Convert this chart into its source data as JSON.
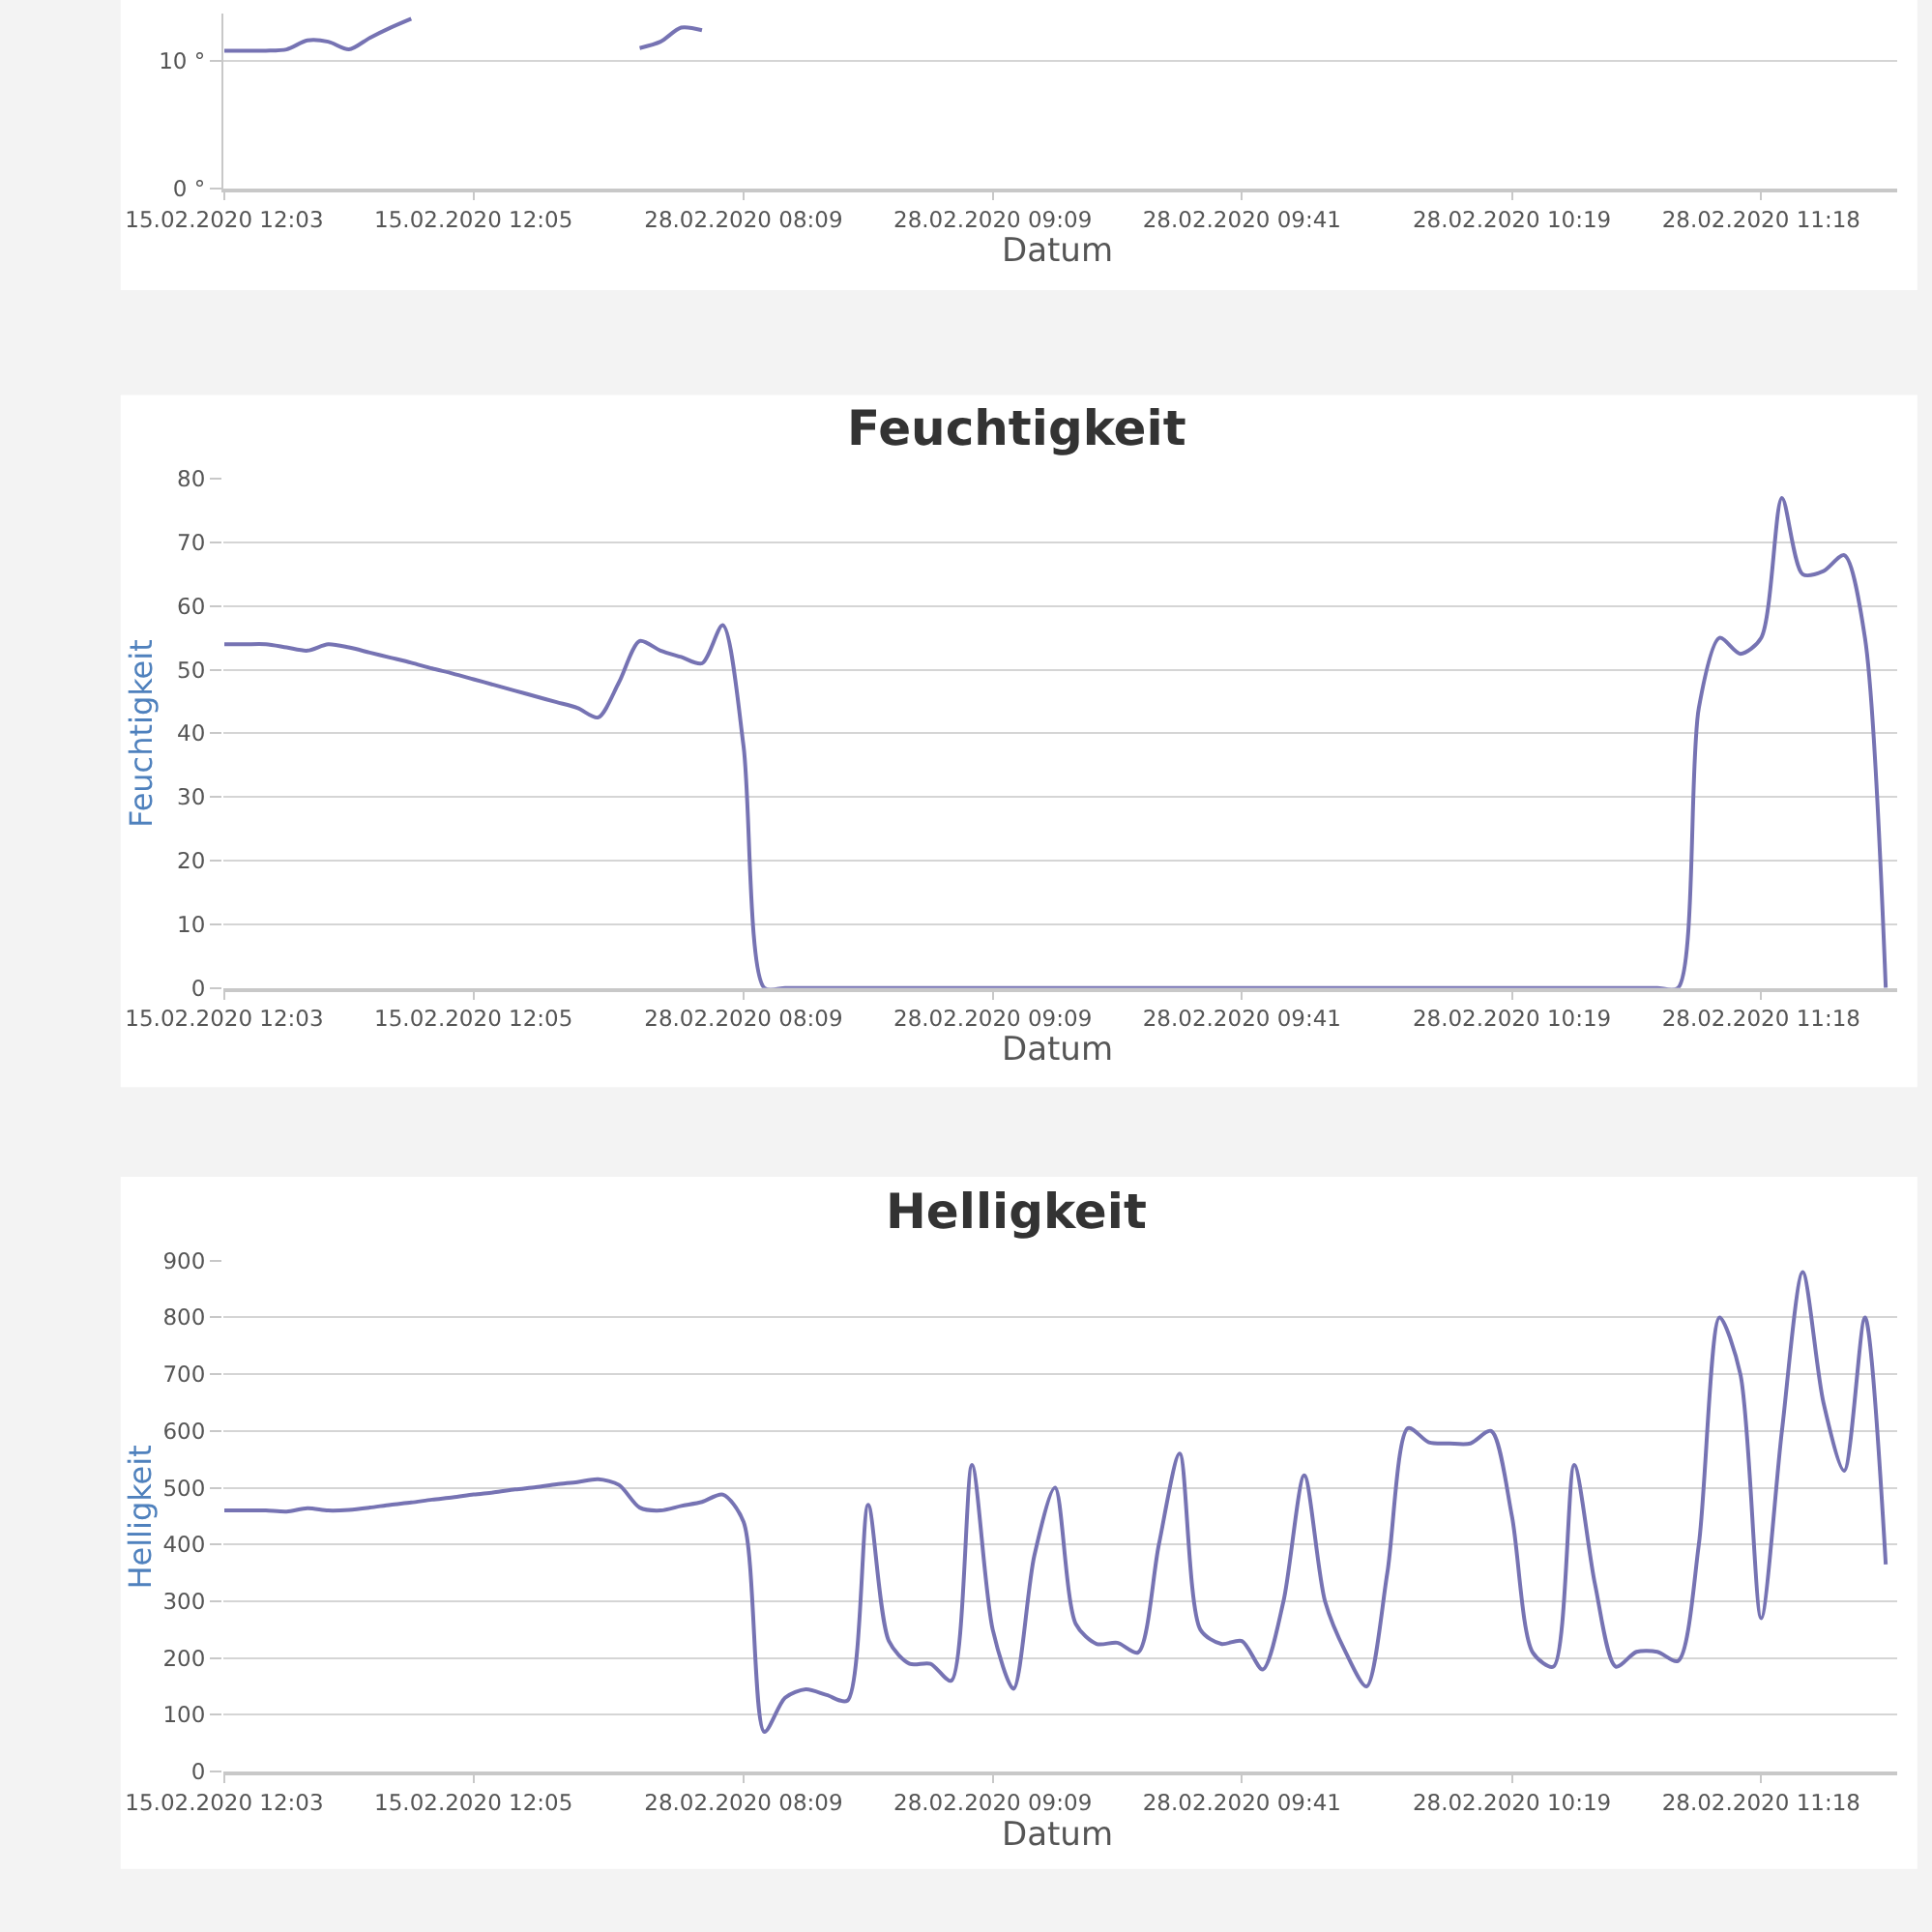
{
  "chart_data": [
    {
      "type": "line",
      "xlabel": "Datum",
      "grid": "y",
      "marker": "none",
      "line_style": "solid",
      "categories": [
        "15.02.2020 12:03",
        null,
        null,
        null,
        null,
        null,
        null,
        null,
        null,
        null,
        null,
        null,
        "15.02.2020 12:05",
        null,
        null,
        null,
        null,
        null,
        null,
        null,
        null,
        null,
        null,
        null,
        null,
        "28.02.2020 08:09",
        null,
        null,
        null,
        null,
        null,
        null,
        null,
        null,
        null,
        null,
        null,
        "28.02.2020 09:09",
        null,
        null,
        null,
        null,
        null,
        null,
        null,
        null,
        null,
        null,
        null,
        "28.02.2020 09:41",
        null,
        null,
        null,
        null,
        null,
        null,
        null,
        null,
        null,
        null,
        null,
        null,
        "28.02.2020 10:19",
        null,
        null,
        null,
        null,
        null,
        null,
        null,
        null,
        null,
        null,
        null,
        "28.02.2020 11:18",
        null,
        null,
        null,
        null,
        null,
        null
      ],
      "ylim": [
        0,
        13.7
      ],
      "yticks": [
        {
          "value": 0,
          "label": "0 °"
        },
        {
          "value": 10,
          "label": "10 °"
        }
      ],
      "series": [
        {
          "color": "#7673b3",
          "values": [
            10.8,
            10.8,
            10.8,
            10.9,
            11.6,
            11.5,
            10.9,
            11.8,
            12.6,
            13.3,
            null,
            null,
            null,
            null,
            null,
            null,
            null,
            null,
            null,
            null,
            11.0,
            11.5,
            12.6,
            12.4,
            null,
            null,
            null,
            null,
            null,
            null,
            null,
            null,
            null,
            null,
            null,
            null,
            null,
            null,
            null,
            null,
            null,
            null,
            null,
            null,
            null,
            null,
            null,
            null,
            null,
            null,
            null,
            null,
            null,
            null,
            null,
            null,
            null,
            null,
            null,
            null,
            null,
            null,
            null,
            null,
            null,
            null,
            null,
            null,
            null,
            null,
            null,
            null,
            null,
            null,
            null,
            null,
            null,
            null,
            null,
            null,
            null
          ]
        }
      ]
    },
    {
      "type": "line",
      "title": "Feuchtigkeit",
      "xlabel": "Datum",
      "ylabel": "Feuchtigkeit",
      "grid": "y",
      "marker": "none",
      "line_style": "solid",
      "categories": [
        "15.02.2020 12:03",
        null,
        null,
        null,
        null,
        null,
        null,
        null,
        null,
        null,
        null,
        null,
        "15.02.2020 12:05",
        null,
        null,
        null,
        null,
        null,
        null,
        null,
        null,
        null,
        null,
        null,
        null,
        "28.02.2020 08:09",
        null,
        null,
        null,
        null,
        null,
        null,
        null,
        null,
        null,
        null,
        null,
        "28.02.2020 09:09",
        null,
        null,
        null,
        null,
        null,
        null,
        null,
        null,
        null,
        null,
        null,
        "28.02.2020 09:41",
        null,
        null,
        null,
        null,
        null,
        null,
        null,
        null,
        null,
        null,
        null,
        null,
        "28.02.2020 10:19",
        null,
        null,
        null,
        null,
        null,
        null,
        null,
        null,
        null,
        null,
        null,
        "28.02.2020 11:18",
        null,
        null,
        null,
        null,
        null,
        null
      ],
      "ylim": [
        0,
        80
      ],
      "yticks": [
        0,
        10,
        20,
        30,
        40,
        50,
        60,
        70,
        80
      ],
      "series": [
        {
          "color": "#7673b3",
          "values": [
            54,
            54,
            54,
            53.5,
            53,
            54,
            53.5,
            52.7,
            51.9,
            51.1,
            50.2,
            49.4,
            48.5,
            47.6,
            46.7,
            45.8,
            44.9,
            44,
            42.5,
            48,
            54.5,
            53,
            52,
            51,
            57,
            38,
            0,
            0,
            0,
            0,
            0,
            0,
            0,
            0,
            0,
            0,
            0,
            0,
            0,
            0,
            0,
            0,
            0,
            0,
            0,
            0,
            0,
            0,
            0,
            0,
            0,
            0,
            0,
            0,
            0,
            0,
            0,
            0,
            0,
            0,
            0,
            0,
            0,
            0,
            0,
            0,
            0,
            0,
            0,
            0,
            0,
            44,
            55,
            52.5,
            55,
            77,
            65,
            65.5,
            68,
            55,
            0
          ]
        }
      ]
    },
    {
      "type": "line",
      "title": "Helligkeit",
      "xlabel": "Datum",
      "ylabel": "Helligkeit",
      "grid": "y",
      "marker": "none",
      "line_style": "solid",
      "categories": [
        "15.02.2020 12:03",
        null,
        null,
        null,
        null,
        null,
        null,
        null,
        null,
        null,
        null,
        null,
        "15.02.2020 12:05",
        null,
        null,
        null,
        null,
        null,
        null,
        null,
        null,
        null,
        null,
        null,
        null,
        "28.02.2020 08:09",
        null,
        null,
        null,
        null,
        null,
        null,
        null,
        null,
        null,
        null,
        null,
        "28.02.2020 09:09",
        null,
        null,
        null,
        null,
        null,
        null,
        null,
        null,
        null,
        null,
        null,
        "28.02.2020 09:41",
        null,
        null,
        null,
        null,
        null,
        null,
        null,
        null,
        null,
        null,
        null,
        null,
        "28.02.2020 10:19",
        null,
        null,
        null,
        null,
        null,
        null,
        null,
        null,
        null,
        null,
        null,
        "28.02.2020 11:18",
        null,
        null,
        null,
        null,
        null,
        null
      ],
      "ylim": [
        0,
        900
      ],
      "yticks": [
        0,
        100,
        200,
        300,
        400,
        500,
        600,
        700,
        800,
        900
      ],
      "series": [
        {
          "color": "#7673b3",
          "values": [
            460,
            460,
            460,
            458,
            464,
            460,
            461,
            465,
            470,
            474,
            479,
            483,
            488,
            492,
            497,
            501,
            506,
            510,
            515,
            505,
            465,
            460,
            468,
            475,
            488,
            440,
            70,
            130,
            145,
            135,
            125,
            470,
            230,
            190,
            190,
            160,
            540,
            250,
            146,
            380,
            500,
            260,
            225,
            227,
            210,
            400,
            560,
            250,
            225,
            230,
            180,
            300,
            522,
            300,
            210,
            150,
            350,
            605,
            580,
            578,
            578,
            600,
            450,
            210,
            185,
            540,
            330,
            185,
            211,
            211,
            195,
            400,
            800,
            700,
            270,
            600,
            880,
            650,
            530,
            800,
            365
          ]
        }
      ]
    }
  ]
}
